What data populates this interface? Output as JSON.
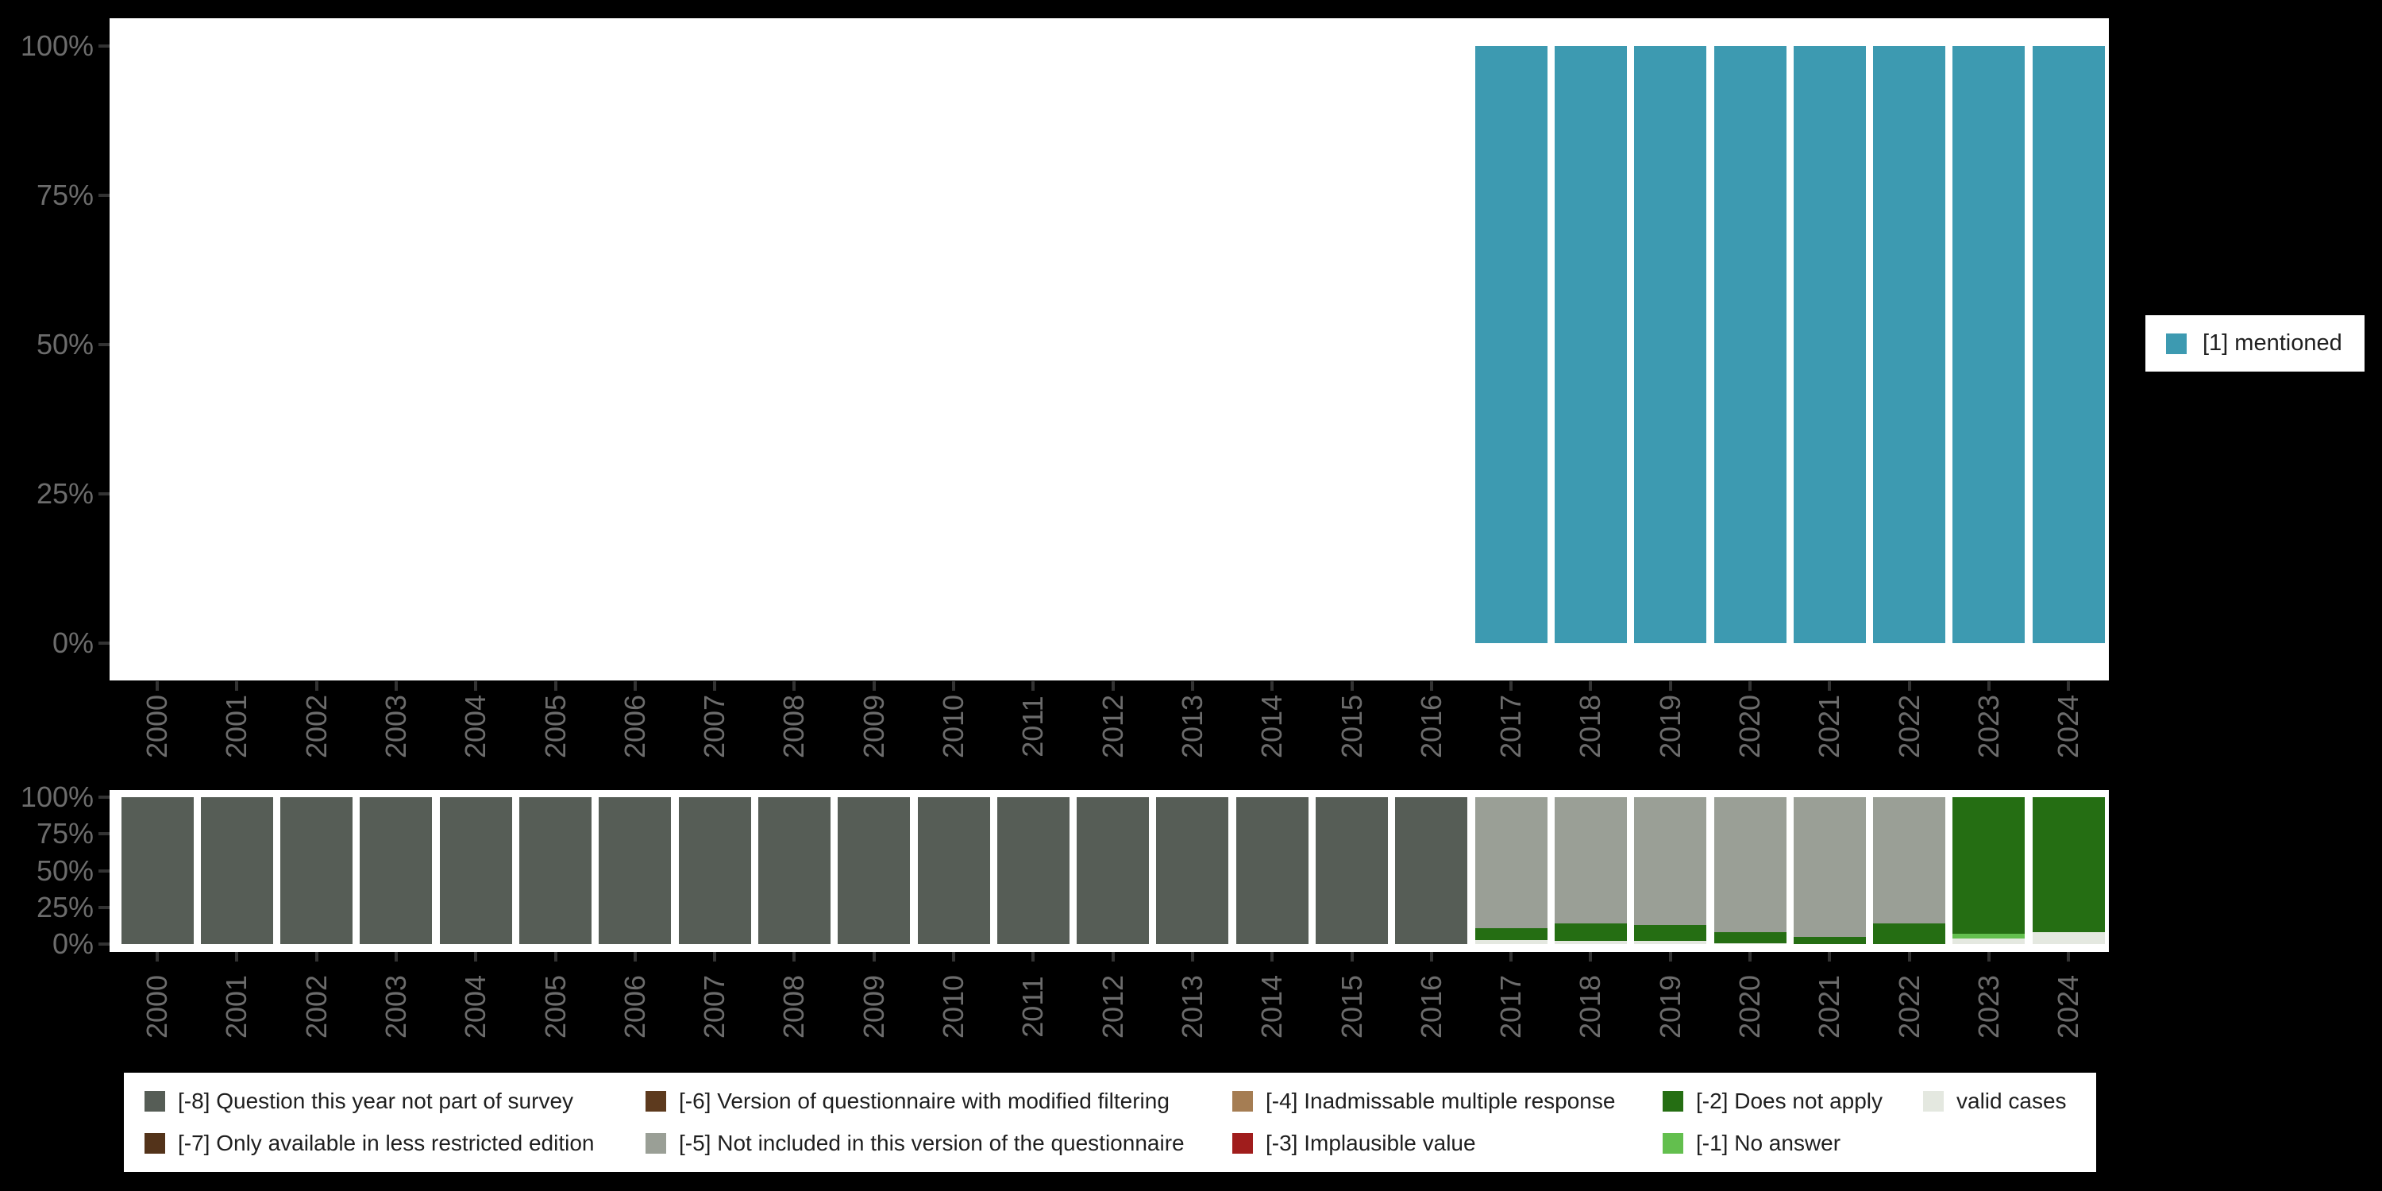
{
  "top_legend": {
    "label": "[1] mentioned",
    "color": "#3D9AB1"
  },
  "chart_data": [
    {
      "id": "values-over-years",
      "type": "bar",
      "stacked": true,
      "title": "",
      "xlabel": "",
      "ylabel": "",
      "ylim": [
        0,
        100
      ],
      "yticks": [
        "100%",
        "75%",
        "50%",
        "25%",
        "0%"
      ],
      "legend_position": "right",
      "grid": false,
      "x": [
        "2000",
        "2001",
        "2002",
        "2003",
        "2004",
        "2005",
        "2006",
        "2007",
        "2008",
        "2009",
        "2010",
        "2011",
        "2012",
        "2013",
        "2014",
        "2015",
        "2016",
        "2017",
        "2018",
        "2019",
        "2020",
        "2021",
        "2022",
        "2023",
        "2024"
      ],
      "series": [
        {
          "name": "[1] mentioned",
          "color": "#3D9AB1",
          "values": [
            null,
            null,
            null,
            null,
            null,
            null,
            null,
            null,
            null,
            null,
            null,
            null,
            null,
            null,
            null,
            null,
            null,
            100,
            100,
            100,
            100,
            100,
            100,
            100,
            100
          ]
        }
      ]
    },
    {
      "id": "missing-values-over-years",
      "type": "bar",
      "stacked": true,
      "title": "",
      "xlabel": "",
      "ylabel": "",
      "ylim": [
        0,
        100
      ],
      "yticks": [
        "100%",
        "75%",
        "50%",
        "25%",
        "0%"
      ],
      "legend_position": "bottom",
      "grid": false,
      "x": [
        "2000",
        "2001",
        "2002",
        "2003",
        "2004",
        "2005",
        "2006",
        "2007",
        "2008",
        "2009",
        "2010",
        "2011",
        "2012",
        "2013",
        "2014",
        "2015",
        "2016",
        "2017",
        "2018",
        "2019",
        "2020",
        "2021",
        "2022",
        "2023",
        "2024"
      ],
      "series": [
        {
          "name": "[-8] Question this year not part of survey",
          "color": "#565D56",
          "values": [
            100,
            100,
            100,
            100,
            100,
            100,
            100,
            100,
            100,
            100,
            100,
            100,
            100,
            100,
            100,
            100,
            100,
            0,
            0,
            0,
            0,
            0,
            0,
            0,
            0
          ]
        },
        {
          "name": "[-7] Only available in less restricted edition",
          "color": "#53331A",
          "values": [
            0,
            0,
            0,
            0,
            0,
            0,
            0,
            0,
            0,
            0,
            0,
            0,
            0,
            0,
            0,
            0,
            0,
            0,
            0,
            0,
            0,
            0,
            0,
            0,
            0
          ]
        },
        {
          "name": "[-6] Version of questionnaire with modified filtering",
          "color": "#5D3A1E",
          "values": [
            0,
            0,
            0,
            0,
            0,
            0,
            0,
            0,
            0,
            0,
            0,
            0,
            0,
            0,
            0,
            0,
            0,
            0,
            0,
            0,
            0,
            0,
            0,
            0,
            0
          ]
        },
        {
          "name": "[-5] Not included in this version of the questionnaire",
          "color": "#9A9F96",
          "values": [
            0,
            0,
            0,
            0,
            0,
            0,
            0,
            0,
            0,
            0,
            0,
            0,
            0,
            0,
            0,
            0,
            0,
            89,
            86,
            87,
            92,
            95,
            86,
            0,
            0
          ]
        },
        {
          "name": "[-4] Inadmissable multiple response",
          "color": "#A57D53",
          "values": [
            0,
            0,
            0,
            0,
            0,
            0,
            0,
            0,
            0,
            0,
            0,
            0,
            0,
            0,
            0,
            0,
            0,
            0,
            0,
            0,
            0,
            0,
            0,
            0,
            0
          ]
        },
        {
          "name": "[-3] Implausible value",
          "color": "#A01D1C",
          "values": [
            0,
            0,
            0,
            0,
            0,
            0,
            0,
            0,
            0,
            0,
            0,
            0,
            0,
            0,
            0,
            0,
            0,
            0,
            0,
            0,
            0,
            0,
            0,
            0,
            0
          ]
        },
        {
          "name": "[-2] Does not apply",
          "color": "#256E13",
          "values": [
            0,
            0,
            0,
            0,
            0,
            0,
            0,
            0,
            0,
            0,
            0,
            0,
            0,
            0,
            0,
            0,
            0,
            8.5,
            12,
            11,
            7.5,
            5,
            14,
            93,
            92
          ]
        },
        {
          "name": "[-1] No answer",
          "color": "#63BF4E",
          "values": [
            0,
            0,
            0,
            0,
            0,
            0,
            0,
            0,
            0,
            0,
            0,
            0,
            0,
            0,
            0,
            0,
            0,
            0,
            0,
            0,
            0,
            0,
            0,
            3,
            0
          ]
        },
        {
          "name": "valid cases",
          "color": "#E4E8E0",
          "values": [
            0,
            0,
            0,
            0,
            0,
            0,
            0,
            0,
            0,
            0,
            0,
            0,
            0,
            0,
            0,
            0,
            0,
            2.5,
            2,
            2,
            0.5,
            0,
            0,
            4,
            8
          ]
        }
      ]
    }
  ],
  "bottom_legend": {
    "columns": [
      [
        {
          "label": "[-8] Question this year not part of survey",
          "color": "#565D56"
        },
        {
          "label": "[-7] Only available in less restricted edition",
          "color": "#53331A"
        }
      ],
      [
        {
          "label": "[-6] Version of questionnaire with modified filtering",
          "color": "#5D3A1E"
        },
        {
          "label": "[-5] Not included in this version of the questionnaire",
          "color": "#9A9F96"
        }
      ],
      [
        {
          "label": "[-4] Inadmissable multiple response",
          "color": "#A57D53"
        },
        {
          "label": "[-3] Implausible value",
          "color": "#A01D1C"
        }
      ],
      [
        {
          "label": "[-2] Does not apply",
          "color": "#256E13"
        },
        {
          "label": "[-1] No answer",
          "color": "#63BF4E"
        }
      ],
      [
        {
          "label": "valid cases",
          "color": "#E4E8E0"
        }
      ]
    ]
  }
}
